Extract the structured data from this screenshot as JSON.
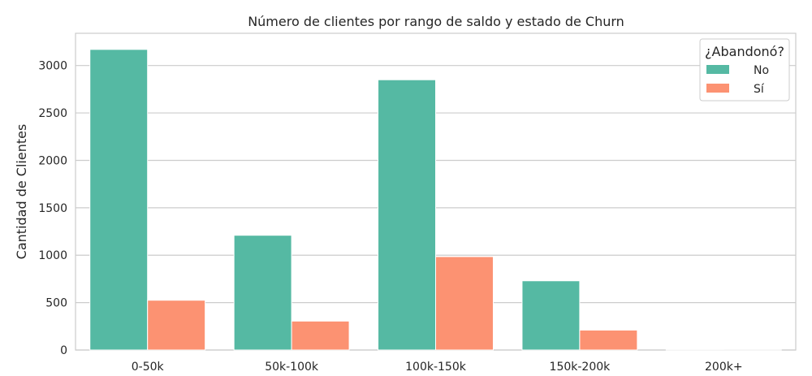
{
  "chart_data": {
    "type": "bar",
    "title": "Número de clientes por rango de saldo y estado de Churn",
    "xlabel": "",
    "ylabel": "Cantidad de Clientes",
    "categories": [
      "0-50k",
      "50k-100k",
      "100k-150k",
      "150k-200k",
      "200k+"
    ],
    "series": [
      {
        "name": "No",
        "color": "#55b9a3",
        "values": [
          3170,
          1210,
          2850,
          730,
          2
        ]
      },
      {
        "name": "Sí",
        "color": "#fc9272",
        "values": [
          525,
          305,
          985,
          210,
          1
        ]
      }
    ],
    "ylim": [
      0,
      3340
    ],
    "yticks": [
      0,
      500,
      1000,
      1500,
      2000,
      2500,
      3000
    ],
    "grid": true,
    "legend": {
      "title": "¿Abandonó?",
      "placement": "top-right"
    }
  }
}
